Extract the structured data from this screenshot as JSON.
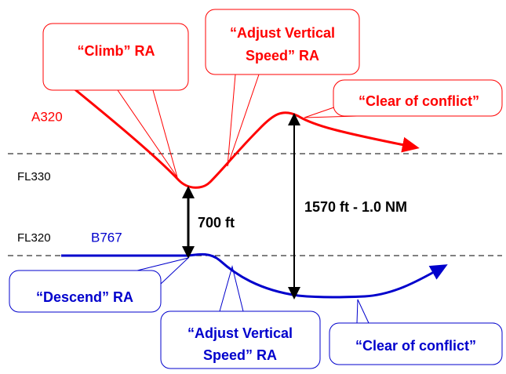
{
  "aircraft": {
    "red": "A320",
    "blue": "B767"
  },
  "levels": {
    "upper": "FL330",
    "lower": "FL320"
  },
  "separations": {
    "vertical": "700 ft",
    "closest": "1570 ft - 1.0 NM"
  },
  "red_callouts": [
    {
      "lines": [
        "“Climb” RA"
      ]
    },
    {
      "lines": [
        "“Adjust Vertical",
        "Speed” RA"
      ]
    },
    {
      "lines": [
        "“Clear of conflict”"
      ]
    }
  ],
  "blue_callouts": [
    {
      "lines": [
        "“Descend” RA"
      ]
    },
    {
      "lines": [
        "“Adjust Vertical",
        "Speed” RA"
      ]
    },
    {
      "lines": [
        "“Clear of conflict”"
      ]
    }
  ]
}
